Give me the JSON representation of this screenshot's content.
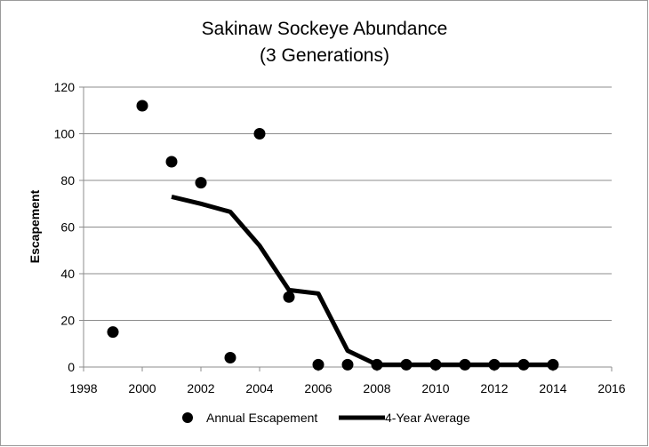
{
  "chart_data": {
    "type": "scatter",
    "title": [
      "Sakinaw Sockeye Abundance",
      "(3 Generations)"
    ],
    "xlabel": "",
    "ylabel": "Escapement",
    "xlim": [
      1998,
      2016
    ],
    "ylim": [
      0,
      120
    ],
    "xticks": [
      1998,
      2000,
      2002,
      2004,
      2006,
      2008,
      2010,
      2012,
      2014,
      2016
    ],
    "yticks": [
      0,
      20,
      40,
      60,
      80,
      100,
      120
    ],
    "grid": "horizontal",
    "legend_position": "bottom",
    "series": [
      {
        "name": "Annual Escapement",
        "kind": "scatter",
        "color": "#000000",
        "points": [
          {
            "x": 1999,
            "y": 15
          },
          {
            "x": 2000,
            "y": 112
          },
          {
            "x": 2001,
            "y": 88
          },
          {
            "x": 2002,
            "y": 79
          },
          {
            "x": 2003,
            "y": 4
          },
          {
            "x": 2004,
            "y": 100
          },
          {
            "x": 2005,
            "y": 30
          },
          {
            "x": 2006,
            "y": 1
          },
          {
            "x": 2007,
            "y": 1
          },
          {
            "x": 2008,
            "y": 1
          },
          {
            "x": 2009,
            "y": 1
          },
          {
            "x": 2010,
            "y": 1
          },
          {
            "x": 2011,
            "y": 1
          },
          {
            "x": 2012,
            "y": 1
          },
          {
            "x": 2013,
            "y": 1
          },
          {
            "x": 2014,
            "y": 1
          }
        ]
      },
      {
        "name": "4-Year Average",
        "kind": "line",
        "color": "#000000",
        "points": [
          {
            "x": 2001,
            "y": 73
          },
          {
            "x": 2002,
            "y": 70
          },
          {
            "x": 2003,
            "y": 66.5
          },
          {
            "x": 2004,
            "y": 52
          },
          {
            "x": 2005,
            "y": 33
          },
          {
            "x": 2006,
            "y": 31.5
          },
          {
            "x": 2007,
            "y": 7
          },
          {
            "x": 2008,
            "y": 1
          },
          {
            "x": 2009,
            "y": 1
          },
          {
            "x": 2010,
            "y": 1
          },
          {
            "x": 2011,
            "y": 1
          },
          {
            "x": 2012,
            "y": 1
          },
          {
            "x": 2013,
            "y": 1
          },
          {
            "x": 2014,
            "y": 1
          }
        ]
      }
    ]
  }
}
